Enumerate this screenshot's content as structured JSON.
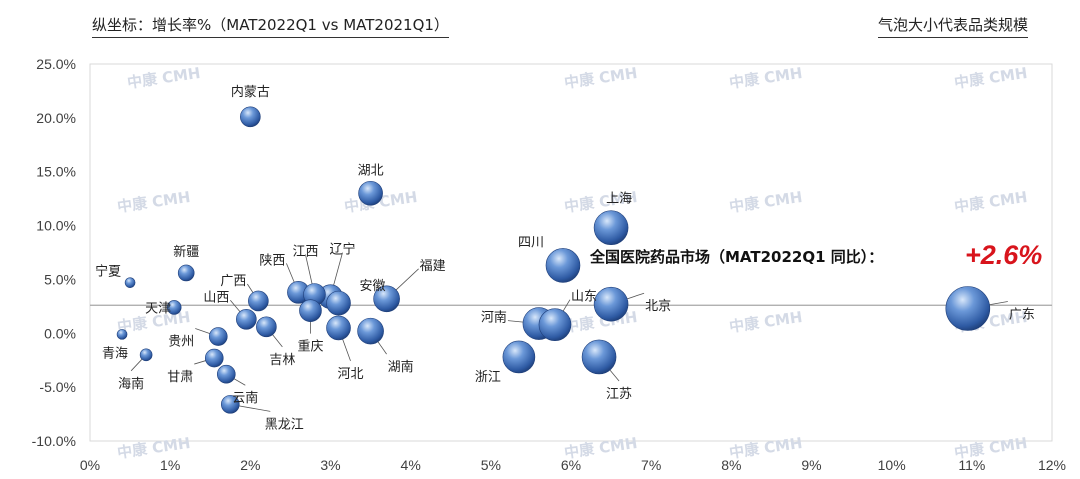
{
  "header": {
    "y_axis_title": "纵坐标：增长率%（MAT2022Q1 vs MAT2021Q1）",
    "bubble_note": "气泡大小代表品类规模"
  },
  "watermark": "中康 CMH",
  "annotation": {
    "text": "全国医院药品市场（MAT2022Q1 同比）：",
    "value": "+2.6%"
  },
  "colors": {
    "bubble": "#4f7fc7",
    "bubble_dark": "#1f3f7a",
    "bubble_light": "#c9dcf5",
    "reference_line": "#a6a6a6",
    "annotation_value": "#d8141c"
  },
  "chart_data": {
    "type": "scatter",
    "xlim": [
      0,
      12
    ],
    "ylim": [
      -10,
      25
    ],
    "x_ticks": [
      "0%",
      "1%",
      "2%",
      "3%",
      "4%",
      "5%",
      "6%",
      "7%",
      "8%",
      "9%",
      "10%",
      "11%",
      "12%"
    ],
    "y_ticks": [
      "25.0%",
      "20.0%",
      "15.0%",
      "10.0%",
      "5.0%",
      "0.0%",
      "-5.0%",
      "-10.0%"
    ],
    "reference_y": 2.6,
    "points": [
      {
        "name": "内蒙古",
        "x": 2.0,
        "y": 20.1,
        "size": 10
      },
      {
        "name": "湖北",
        "x": 3.5,
        "y": 13.0,
        "size": 12
      },
      {
        "name": "上海",
        "x": 6.5,
        "y": 9.8,
        "size": 17
      },
      {
        "name": "四川",
        "x": 5.9,
        "y": 6.3,
        "size": 17
      },
      {
        "name": "新疆",
        "x": 1.2,
        "y": 5.6,
        "size": 8
      },
      {
        "name": "宁夏",
        "x": 0.5,
        "y": 4.7,
        "size": 5
      },
      {
        "name": "陕西",
        "x": 2.6,
        "y": 3.8,
        "size": 11
      },
      {
        "name": "江西",
        "x": 2.8,
        "y": 3.6,
        "size": 11
      },
      {
        "name": "辽宁",
        "x": 3.0,
        "y": 3.4,
        "size": 12
      },
      {
        "name": "安徽",
        "x": 3.1,
        "y": 2.8,
        "size": 12
      },
      {
        "name": "福建",
        "x": 3.7,
        "y": 3.2,
        "size": 13
      },
      {
        "name": "广西",
        "x": 2.1,
        "y": 3.0,
        "size": 10
      },
      {
        "name": "天津",
        "x": 1.05,
        "y": 2.4,
        "size": 7
      },
      {
        "name": "山西",
        "x": 1.95,
        "y": 1.3,
        "size": 10
      },
      {
        "name": "重庆",
        "x": 2.75,
        "y": 2.1,
        "size": 11
      },
      {
        "name": "吉林",
        "x": 2.2,
        "y": 0.6,
        "size": 10
      },
      {
        "name": "河北",
        "x": 3.1,
        "y": 0.5,
        "size": 12
      },
      {
        "name": "湖南",
        "x": 3.5,
        "y": 0.2,
        "size": 13
      },
      {
        "name": "贵州",
        "x": 1.6,
        "y": -0.3,
        "size": 9
      },
      {
        "name": "青海",
        "x": 0.4,
        "y": -0.1,
        "size": 5
      },
      {
        "name": "甘肃",
        "x": 1.55,
        "y": -2.3,
        "size": 9
      },
      {
        "name": "海南",
        "x": 0.7,
        "y": -2.0,
        "size": 6
      },
      {
        "name": "云南",
        "x": 1.7,
        "y": -3.8,
        "size": 9
      },
      {
        "name": "黑龙江",
        "x": 1.75,
        "y": -6.6,
        "size": 9
      },
      {
        "name": "浙江",
        "x": 5.35,
        "y": -2.2,
        "size": 16
      },
      {
        "name": "河南",
        "x": 5.6,
        "y": 0.9,
        "size": 16
      },
      {
        "name": "山东",
        "x": 5.8,
        "y": 0.8,
        "size": 16
      },
      {
        "name": "北京",
        "x": 6.5,
        "y": 2.7,
        "size": 17
      },
      {
        "name": "江苏",
        "x": 6.35,
        "y": -2.2,
        "size": 17
      },
      {
        "name": "广东",
        "x": 10.95,
        "y": 2.3,
        "size": 22
      }
    ]
  }
}
